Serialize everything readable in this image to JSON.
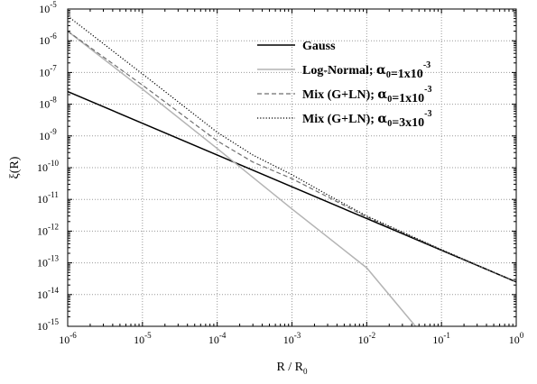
{
  "chart_data": {
    "type": "line",
    "x_scale": "log",
    "y_scale": "log",
    "xlim": [
      1e-06,
      1
    ],
    "ylim": [
      1e-15,
      1e-05
    ],
    "x_tick_exponents": [
      -6,
      -5,
      -4,
      -3,
      -2,
      -1,
      0
    ],
    "y_tick_exponents": [
      -15,
      -14,
      -13,
      -12,
      -11,
      -10,
      -9,
      -8,
      -7,
      -6,
      -5
    ],
    "xlabel": "R / R0",
    "ylabel": "ξ(R)",
    "grid": true,
    "legend_position": "top-right",
    "legend": [
      {
        "name": "Gauss",
        "parts": [
          {
            "t": "Gauss"
          }
        ]
      },
      {
        "name": "Log-Normal; α0=1x10-3",
        "parts": [
          {
            "t": "Log-Normal;  "
          },
          {
            "t": "α",
            "sym": true
          },
          {
            "t": "0",
            "sub": true
          },
          {
            "t": "=1x10"
          },
          {
            "t": "-3",
            "sup": true
          }
        ]
      },
      {
        "name": "Mix (G+LN);  α0=1x10-3",
        "parts": [
          {
            "t": "Mix (G+LN);  "
          },
          {
            "t": "α",
            "sym": true
          },
          {
            "t": "0",
            "sub": true
          },
          {
            "t": "=1x10"
          },
          {
            "t": "-3",
            "sup": true
          }
        ]
      },
      {
        "name": "Mix (G+LN);  α0=3x10-3",
        "parts": [
          {
            "t": "Mix (G+LN);  "
          },
          {
            "t": "α",
            "sym": true
          },
          {
            "t": "0",
            "sub": true
          },
          {
            "t": "=3x10"
          },
          {
            "t": "-3",
            "sup": true
          }
        ]
      }
    ],
    "series": [
      {
        "name": "Gauss",
        "color": "#000000",
        "style": "solid",
        "x": [
          1e-06,
          1
        ],
        "y": [
          2.5e-08,
          2.5e-14
        ]
      },
      {
        "name": "Log-Normal; α0=1x10-3",
        "color": "#b4b4b4",
        "style": "solid",
        "x": [
          1e-06,
          1e-05,
          0.0001,
          0.001,
          0.01,
          0.045
        ],
        "y": [
          2e-06,
          3e-08,
          4e-10,
          5e-12,
          7e-14,
          1e-15
        ]
      },
      {
        "name": "Mix (G+LN);  α0=1x10-3",
        "color": "#6e6e6e",
        "style": "dashed",
        "x": [
          1e-06,
          1e-05,
          0.0001,
          0.0003,
          0.001,
          0.003,
          0.01,
          0.1,
          1
        ],
        "y": [
          2e-06,
          4e-08,
          7e-10,
          1.5e-10,
          4.5e-11,
          1.2e-11,
          2.8e-12,
          2.6e-13,
          2.5e-14
        ]
      },
      {
        "name": "Mix (G+LN);  α0=3x10-3",
        "color": "#000000",
        "style": "dotted",
        "x": [
          1e-06,
          1e-05,
          0.0001,
          0.0003,
          0.001,
          0.003,
          0.01,
          0.1,
          1
        ],
        "y": [
          6e-06,
          9e-08,
          1.3e-09,
          2.5e-10,
          6e-11,
          1.4e-11,
          3e-12,
          2.6e-13,
          2.5e-14
        ]
      }
    ]
  }
}
